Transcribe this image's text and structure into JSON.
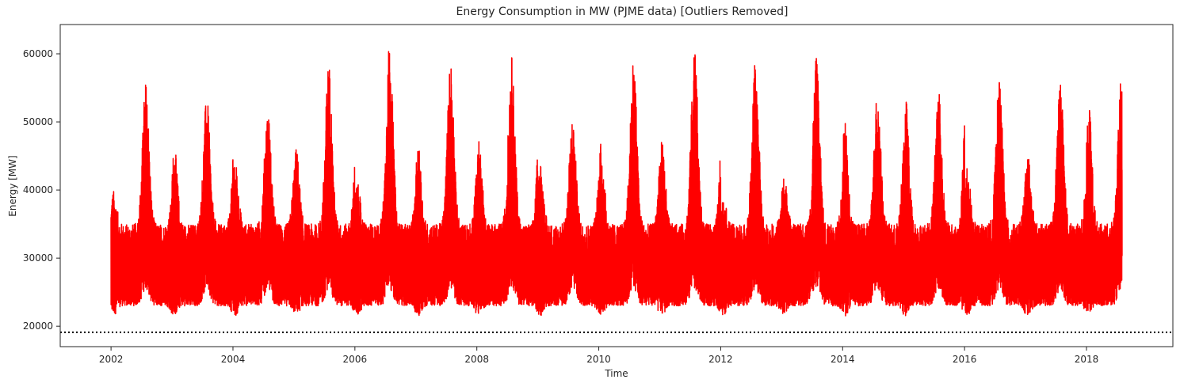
{
  "chart_data": {
    "type": "line",
    "title": "Energy Consumption in MW (PJME data) [Outliers Removed]",
    "xlabel": "Time",
    "ylabel": "Energy [MW]",
    "x_range": [
      "2001-03",
      "2019-06"
    ],
    "ylim": [
      17000,
      64300
    ],
    "x_ticks": [
      "2002",
      "2004",
      "2006",
      "2008",
      "2010",
      "2012",
      "2014",
      "2016",
      "2018"
    ],
    "y_ticks": [
      "20000",
      "30000",
      "40000",
      "50000",
      "60000"
    ],
    "grid": false,
    "legend": "none",
    "series": [
      {
        "color": "#ff0000",
        "data_start": "2002-01",
        "data_end": "2018-08",
        "annual_peaks": [
          {
            "year": 2002,
            "summer_max": 56000,
            "winter_max": 40000
          },
          {
            "year": 2003,
            "summer_max": 53700,
            "winter_max": 46400
          },
          {
            "year": 2004,
            "summer_max": 52000,
            "winter_max": 44300
          },
          {
            "year": 2005,
            "summer_max": 59000,
            "winter_max": 46200
          },
          {
            "year": 2006,
            "summer_max": 62000,
            "winter_max": 41000
          },
          {
            "year": 2007,
            "summer_max": 59500,
            "winter_max": 46300
          },
          {
            "year": 2008,
            "summer_max": 59700,
            "winter_max": 47300
          },
          {
            "year": 2009,
            "summer_max": 50700,
            "winter_max": 44200
          },
          {
            "year": 2010,
            "summer_max": 59800,
            "winter_max": 47200
          },
          {
            "year": 2011,
            "summer_max": 61700,
            "winter_max": 47400
          },
          {
            "year": 2012,
            "summer_max": 59000,
            "winter_max": 39000
          },
          {
            "year": 2013,
            "summer_max": 59500,
            "winter_max": 42300
          },
          {
            "year": 2014,
            "summer_max": 54900,
            "winter_max": 50400
          },
          {
            "year": 2015,
            "summer_max": 55100,
            "winter_max": 53400
          },
          {
            "year": 2016,
            "summer_max": 56400,
            "winter_max": 44200
          },
          {
            "year": 2017,
            "summer_max": 56200,
            "winter_max": 45200
          },
          {
            "year": 2018,
            "summer_max": 56600,
            "winter_max": 52600
          }
        ],
        "typical_min": 19500,
        "typical_base": 30000
      }
    ],
    "reference_line": {
      "y": 19100,
      "style": "dotted",
      "color": "#000000"
    }
  }
}
